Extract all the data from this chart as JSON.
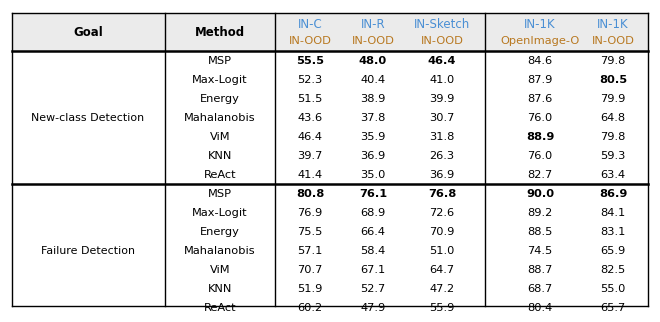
{
  "section1_label": "New-class Detection",
  "section2_label": "Failure Detection",
  "methods": [
    "MSP",
    "Max-Logit",
    "Energy",
    "Mahalanobis",
    "ViM",
    "KNN",
    "ReAct"
  ],
  "col1_top": "IN-C",
  "col2_top": "IN-R",
  "col3_top": "IN-Sketch",
  "col4_top": "IN-1K",
  "col5_top": "IN-1K",
  "col1_bot": "IN-OOD",
  "col2_bot": "IN-OOD",
  "col3_bot": "IN-OOD",
  "col4_bot": "OpenImage-O",
  "col5_bot": "IN-OOD",
  "top_color": "#4a8fd4",
  "bot_color": "#b87820",
  "section1_data": [
    [
      "55.5",
      "48.0",
      "46.4",
      "84.6",
      "79.8"
    ],
    [
      "52.3",
      "40.4",
      "41.0",
      "87.9",
      "80.5"
    ],
    [
      "51.5",
      "38.9",
      "39.9",
      "87.6",
      "79.9"
    ],
    [
      "43.6",
      "37.8",
      "30.7",
      "76.0",
      "64.8"
    ],
    [
      "46.4",
      "35.9",
      "31.8",
      "88.9",
      "79.8"
    ],
    [
      "39.7",
      "36.9",
      "26.3",
      "76.0",
      "59.3"
    ],
    [
      "41.4",
      "35.0",
      "36.9",
      "82.7",
      "63.4"
    ]
  ],
  "section1_bold": [
    [
      true,
      true,
      true,
      false,
      false
    ],
    [
      false,
      false,
      false,
      false,
      true
    ],
    [
      false,
      false,
      false,
      false,
      false
    ],
    [
      false,
      false,
      false,
      false,
      false
    ],
    [
      false,
      false,
      false,
      true,
      false
    ],
    [
      false,
      false,
      false,
      false,
      false
    ],
    [
      false,
      false,
      false,
      false,
      false
    ]
  ],
  "section2_data": [
    [
      "80.8",
      "76.1",
      "76.8",
      "90.0",
      "86.9"
    ],
    [
      "76.9",
      "68.9",
      "72.6",
      "89.2",
      "84.1"
    ],
    [
      "75.5",
      "66.4",
      "70.9",
      "88.5",
      "83.1"
    ],
    [
      "57.1",
      "58.4",
      "51.0",
      "74.5",
      "65.9"
    ],
    [
      "70.7",
      "67.1",
      "64.7",
      "88.7",
      "82.5"
    ],
    [
      "51.9",
      "52.7",
      "47.2",
      "68.7",
      "55.0"
    ],
    [
      "60.2",
      "47.9",
      "55.9",
      "80.4",
      "65.7"
    ]
  ],
  "section2_bold": [
    [
      true,
      true,
      true,
      true,
      true
    ],
    [
      false,
      false,
      false,
      false,
      false
    ],
    [
      false,
      false,
      false,
      false,
      false
    ],
    [
      false,
      false,
      false,
      false,
      false
    ],
    [
      false,
      false,
      false,
      false,
      false
    ],
    [
      false,
      false,
      false,
      false,
      false
    ],
    [
      false,
      false,
      false,
      false,
      false
    ]
  ]
}
